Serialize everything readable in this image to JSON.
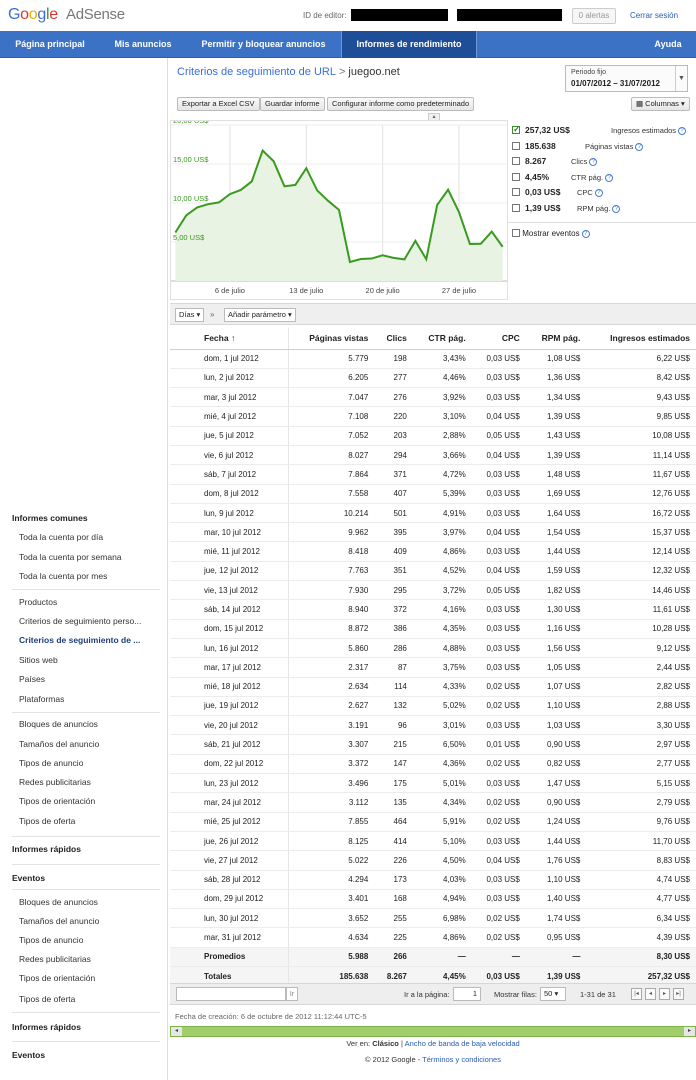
{
  "header": {
    "logo_google": "Google",
    "logo_product": "AdSense",
    "editor_id_label": "ID de editor:",
    "alerts": "0 alertas",
    "signout": "Cerrar sesión"
  },
  "nav": {
    "items": [
      {
        "label": "Página principal",
        "active": false
      },
      {
        "label": "Mis anuncios",
        "active": false
      },
      {
        "label": "Permitir y bloquear anuncios",
        "active": false
      },
      {
        "label": "Informes de rendimiento",
        "active": true
      },
      {
        "label": "Ayuda",
        "active": false
      }
    ]
  },
  "sidebar": {
    "sections": [
      {
        "type": "head",
        "label": "Informes comunes"
      },
      {
        "type": "item",
        "label": "Toda la cuenta por día"
      },
      {
        "type": "item",
        "label": "Toda la cuenta por semana"
      },
      {
        "type": "item",
        "label": "Toda la cuenta por mes"
      },
      {
        "type": "divider"
      },
      {
        "type": "item",
        "label": "Productos"
      },
      {
        "type": "item",
        "label": "Criterios de seguimiento perso..."
      },
      {
        "type": "item",
        "label": "Criterios de seguimiento de ...",
        "selected": true
      },
      {
        "type": "item",
        "label": "Sitios web"
      },
      {
        "type": "item",
        "label": "Países"
      },
      {
        "type": "item",
        "label": "Plataformas"
      },
      {
        "type": "divider"
      },
      {
        "type": "item",
        "label": "Bloques de anuncios"
      },
      {
        "type": "item",
        "label": "Tamaños del anuncio"
      },
      {
        "type": "item",
        "label": "Tipos de anuncio"
      },
      {
        "type": "item",
        "label": "Redes publicitarias"
      },
      {
        "type": "item",
        "label": "Tipos de orientación"
      },
      {
        "type": "item",
        "label": "Tipos de oferta"
      },
      {
        "type": "divider"
      },
      {
        "type": "head",
        "label": "Informes rápidos"
      },
      {
        "type": "divider"
      },
      {
        "type": "head",
        "label": "Eventos"
      },
      {
        "type": "divider"
      },
      {
        "type": "item",
        "label": "Bloques de anuncios"
      },
      {
        "type": "item",
        "label": "Tamaños del anuncio"
      },
      {
        "type": "item",
        "label": "Tipos de anuncio"
      },
      {
        "type": "item",
        "label": "Redes publicitarias"
      },
      {
        "type": "item",
        "label": "Tipos de orientación"
      },
      {
        "type": "item",
        "label": "Tipos de oferta"
      },
      {
        "type": "divider"
      },
      {
        "type": "head",
        "label": "Informes rápidos"
      },
      {
        "type": "divider"
      },
      {
        "type": "head",
        "label": "Eventos"
      }
    ]
  },
  "report": {
    "breadcrumb_link": "Criterios de seguimiento de URL",
    "breadcrumb_sep": ">",
    "breadcrumb_site": "juegoo.net",
    "period_label": "Periodo fijo",
    "period_value": "01/07/2012 – 31/07/2012",
    "export_btn": "Exportar a Excel CSV",
    "save_btn": "Guardar informe",
    "default_btn": "Configurar informe como predeterminado",
    "columns_btn": "Columnas",
    "days_select": "Días",
    "add_param": "Añadir parámetro",
    "breadcrumb_arrows": "»"
  },
  "legend": {
    "metrics": [
      {
        "value": "257,32 US$",
        "name": "Ingresos estimados",
        "checked": true
      },
      {
        "value": "185.638",
        "name": "Páginas vistas",
        "checked": false
      },
      {
        "value": "8.267",
        "name": "Clics",
        "checked": false
      },
      {
        "value": "4,45%",
        "name": "CTR pág.",
        "checked": false
      },
      {
        "value": "0,03 US$",
        "name": "CPC",
        "checked": false
      },
      {
        "value": "1,39 US$",
        "name": "RPM pág.",
        "checked": false
      }
    ],
    "show_events": "Mostrar eventos",
    "help": "?"
  },
  "chart_data": {
    "type": "area",
    "y_tick_labels": [
      "20,00 US$",
      "15,00 US$",
      "10,00 US$",
      "5,00 US$"
    ],
    "y_ticks": [
      20,
      15,
      10,
      5
    ],
    "ylim": [
      0,
      20
    ],
    "x_tick_labels": [
      "6 de julio",
      "13 de julio",
      "20 de julio",
      "27 de julio"
    ],
    "x_tick_days": [
      6,
      13,
      20,
      27
    ],
    "x": [
      1,
      2,
      3,
      4,
      5,
      6,
      7,
      8,
      9,
      10,
      11,
      12,
      13,
      14,
      15,
      16,
      17,
      18,
      19,
      20,
      21,
      22,
      23,
      24,
      25,
      26,
      27,
      28,
      29,
      30,
      31
    ],
    "values": [
      6.22,
      8.42,
      9.43,
      9.85,
      10.08,
      11.14,
      11.67,
      12.76,
      16.72,
      15.37,
      12.14,
      12.32,
      14.46,
      11.61,
      10.28,
      9.12,
      2.44,
      2.82,
      2.88,
      3.3,
      2.97,
      2.77,
      5.15,
      2.79,
      9.76,
      11.7,
      8.83,
      4.74,
      4.77,
      6.34,
      4.39
    ],
    "color": "#3a9a1e",
    "fill": "#e8f3e4",
    "grid": true
  },
  "table": {
    "headers": [
      "Fecha",
      "Páginas vistas",
      "Clics",
      "CTR pág.",
      "CPC",
      "RPM pág.",
      "Ingresos estimados"
    ],
    "sort_indicator": "↑",
    "rows": [
      [
        "dom, 1 jul 2012",
        "5.779",
        "198",
        "3,43%",
        "0,03 US$",
        "1,08 US$",
        "6,22 US$"
      ],
      [
        "lun, 2 jul 2012",
        "6.205",
        "277",
        "4,46%",
        "0,03 US$",
        "1,36 US$",
        "8,42 US$"
      ],
      [
        "mar, 3 jul 2012",
        "7.047",
        "276",
        "3,92%",
        "0,03 US$",
        "1,34 US$",
        "9,43 US$"
      ],
      [
        "mié, 4 jul 2012",
        "7.108",
        "220",
        "3,10%",
        "0,04 US$",
        "1,39 US$",
        "9,85 US$"
      ],
      [
        "jue, 5 jul 2012",
        "7.052",
        "203",
        "2,88%",
        "0,05 US$",
        "1,43 US$",
        "10,08 US$"
      ],
      [
        "vie, 6 jul 2012",
        "8.027",
        "294",
        "3,66%",
        "0,04 US$",
        "1,39 US$",
        "11,14 US$"
      ],
      [
        "sáb, 7 jul 2012",
        "7.864",
        "371",
        "4,72%",
        "0,03 US$",
        "1,48 US$",
        "11,67 US$"
      ],
      [
        "dom, 8 jul 2012",
        "7.558",
        "407",
        "5,39%",
        "0,03 US$",
        "1,69 US$",
        "12,76 US$"
      ],
      [
        "lun, 9 jul 2012",
        "10.214",
        "501",
        "4,91%",
        "0,03 US$",
        "1,64 US$",
        "16,72 US$"
      ],
      [
        "mar, 10 jul 2012",
        "9.962",
        "395",
        "3,97%",
        "0,04 US$",
        "1,54 US$",
        "15,37 US$"
      ],
      [
        "mié, 11 jul 2012",
        "8.418",
        "409",
        "4,86%",
        "0,03 US$",
        "1,44 US$",
        "12,14 US$"
      ],
      [
        "jue, 12 jul 2012",
        "7.763",
        "351",
        "4,52%",
        "0,04 US$",
        "1,59 US$",
        "12,32 US$"
      ],
      [
        "vie, 13 jul 2012",
        "7.930",
        "295",
        "3,72%",
        "0,05 US$",
        "1,82 US$",
        "14,46 US$"
      ],
      [
        "sáb, 14 jul 2012",
        "8.940",
        "372",
        "4,16%",
        "0,03 US$",
        "1,30 US$",
        "11,61 US$"
      ],
      [
        "dom, 15 jul 2012",
        "8.872",
        "386",
        "4,35%",
        "0,03 US$",
        "1,16 US$",
        "10,28 US$"
      ],
      [
        "lun, 16 jul 2012",
        "5.860",
        "286",
        "4,88%",
        "0,03 US$",
        "1,56 US$",
        "9,12 US$"
      ],
      [
        "mar, 17 jul 2012",
        "2.317",
        "87",
        "3,75%",
        "0,03 US$",
        "1,05 US$",
        "2,44 US$"
      ],
      [
        "mié, 18 jul 2012",
        "2.634",
        "114",
        "4,33%",
        "0,02 US$",
        "1,07 US$",
        "2,82 US$"
      ],
      [
        "jue, 19 jul 2012",
        "2.627",
        "132",
        "5,02%",
        "0,02 US$",
        "1,10 US$",
        "2,88 US$"
      ],
      [
        "vie, 20 jul 2012",
        "3.191",
        "96",
        "3,01%",
        "0,03 US$",
        "1,03 US$",
        "3,30 US$"
      ],
      [
        "sáb, 21 jul 2012",
        "3.307",
        "215",
        "6,50%",
        "0,01 US$",
        "0,90 US$",
        "2,97 US$"
      ],
      [
        "dom, 22 jul 2012",
        "3.372",
        "147",
        "4,36%",
        "0,02 US$",
        "0,82 US$",
        "2,77 US$"
      ],
      [
        "lun, 23 jul 2012",
        "3.496",
        "175",
        "5,01%",
        "0,03 US$",
        "1,47 US$",
        "5,15 US$"
      ],
      [
        "mar, 24 jul 2012",
        "3.112",
        "135",
        "4,34%",
        "0,02 US$",
        "0,90 US$",
        "2,79 US$"
      ],
      [
        "mié, 25 jul 2012",
        "7.855",
        "464",
        "5,91%",
        "0,02 US$",
        "1,24 US$",
        "9,76 US$"
      ],
      [
        "jue, 26 jul 2012",
        "8.125",
        "414",
        "5,10%",
        "0,03 US$",
        "1,44 US$",
        "11,70 US$"
      ],
      [
        "vie, 27 jul 2012",
        "5.022",
        "226",
        "4,50%",
        "0,04 US$",
        "1,76 US$",
        "8,83 US$"
      ],
      [
        "sáb, 28 jul 2012",
        "4.294",
        "173",
        "4,03%",
        "0,03 US$",
        "1,10 US$",
        "4,74 US$"
      ],
      [
        "dom, 29 jul 2012",
        "3.401",
        "168",
        "4,94%",
        "0,03 US$",
        "1,40 US$",
        "4,77 US$"
      ],
      [
        "lun, 30 jul 2012",
        "3.652",
        "255",
        "6,98%",
        "0,02 US$",
        "1,74 US$",
        "6,34 US$"
      ],
      [
        "mar, 31 jul 2012",
        "4.634",
        "225",
        "4,86%",
        "0,02 US$",
        "0,95 US$",
        "4,39 US$"
      ]
    ],
    "averages": [
      "Promedios",
      "5.988",
      "266",
      "—",
      "—",
      "—",
      "8,30 US$"
    ],
    "totals": [
      "Totales",
      "185.638",
      "8.267",
      "4,45%",
      "0,03 US$",
      "1,39 US$",
      "257,32 US$"
    ]
  },
  "pager": {
    "go_label": "Ir a la página:",
    "page_value": "1",
    "rows_label": "Mostrar filas:",
    "rows_value": "50",
    "range": "1-31 de 31"
  },
  "footer": {
    "created": "Fecha de creación: 6 de octubre de 2012 11:12:44 UTC-5",
    "view_in": "Ver en:",
    "classic": "Clásico",
    "separator": "|",
    "low_bandwidth": "Ancho de banda de baja velocidad",
    "copyright": "© 2012 Google -",
    "terms": "Términos y condiciones"
  }
}
